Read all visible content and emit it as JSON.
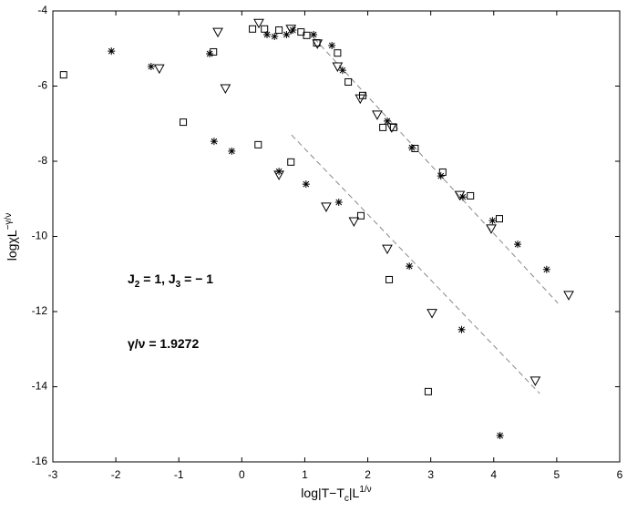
{
  "chart_data": {
    "type": "scatter",
    "x_label": {
      "text": "log|T−T",
      "sub": "c",
      "after": "|L",
      "sup": "1/ν"
    },
    "y_label": {
      "text": "logχL",
      "sup": "−γ/ν"
    },
    "annotation_j": {
      "a": "J",
      "a_sub": "2",
      "b": " = 1, J",
      "b_sub": "3",
      "c": " = − 1"
    },
    "annotation_gamma": "γ/ν = 1.9272",
    "xlim": [
      -3,
      6
    ],
    "ylim": [
      -16,
      -4
    ],
    "xticks": [
      -3,
      -2,
      -1,
      0,
      1,
      2,
      3,
      4,
      5,
      6
    ],
    "yticks": [
      -16,
      -14,
      -12,
      -10,
      -8,
      -6,
      -4
    ],
    "series": [
      {
        "marker": "square",
        "color": "#000000",
        "x": [
          -2.83,
          -0.93,
          -0.45,
          0.17,
          0.26,
          0.36,
          0.59,
          0.78,
          0.94,
          1.03,
          1.19,
          1.52,
          1.69,
          1.92,
          2.24,
          2.41,
          2.75,
          1.89,
          2.34,
          3.19,
          3.63,
          4.09,
          2.96
        ],
        "y": [
          -5.7,
          -6.96,
          -5.09,
          -4.48,
          -7.56,
          -4.48,
          -4.51,
          -8.02,
          -4.56,
          -4.65,
          -4.85,
          -5.12,
          -5.89,
          -6.25,
          -7.1,
          -7.1,
          -7.66,
          -9.45,
          -11.15,
          -8.29,
          -8.92,
          -9.53,
          -14.13
        ]
      },
      {
        "marker": "star",
        "color": "#000000",
        "x": [
          -2.07,
          -1.44,
          -0.51,
          -0.44,
          -0.16,
          0.59,
          1.02,
          1.54,
          0.4,
          0.52,
          0.71,
          0.81,
          1.14,
          1.43,
          1.6,
          2.31,
          2.7,
          3.16,
          3.51,
          3.98,
          4.38,
          4.84,
          2.66,
          3.49,
          4.1
        ],
        "y": [
          -5.07,
          -5.48,
          -5.14,
          -7.47,
          -7.73,
          -8.27,
          -8.61,
          -9.09,
          -4.63,
          -4.68,
          -4.63,
          -4.51,
          -4.63,
          -4.92,
          -5.58,
          -6.93,
          -7.64,
          -8.39,
          -8.95,
          -9.58,
          -10.21,
          -10.88,
          -10.79,
          -12.48,
          -15.3
        ]
      },
      {
        "marker": "triangle",
        "color": "#000000",
        "x": [
          -1.31,
          -0.38,
          -0.26,
          0.27,
          0.59,
          0.78,
          1.2,
          1.52,
          1.88,
          2.15,
          2.38,
          1.34,
          1.78,
          2.31,
          3.02,
          3.46,
          3.96,
          4.66,
          5.19
        ],
        "y": [
          -5.53,
          -4.56,
          -6.06,
          -4.32,
          -8.36,
          -4.48,
          -4.87,
          -5.48,
          -6.33,
          -6.76,
          -7.1,
          -9.21,
          -9.6,
          -10.33,
          -12.04,
          -8.9,
          -9.79,
          -13.84,
          -11.56
        ]
      }
    ],
    "fit_lines": [
      {
        "x": [
          1.15,
          5.02
        ],
        "y": [
          -4.73,
          -11.78
        ]
      },
      {
        "x": [
          0.79,
          4.73
        ],
        "y": [
          -7.3,
          -14.18
        ]
      }
    ]
  }
}
